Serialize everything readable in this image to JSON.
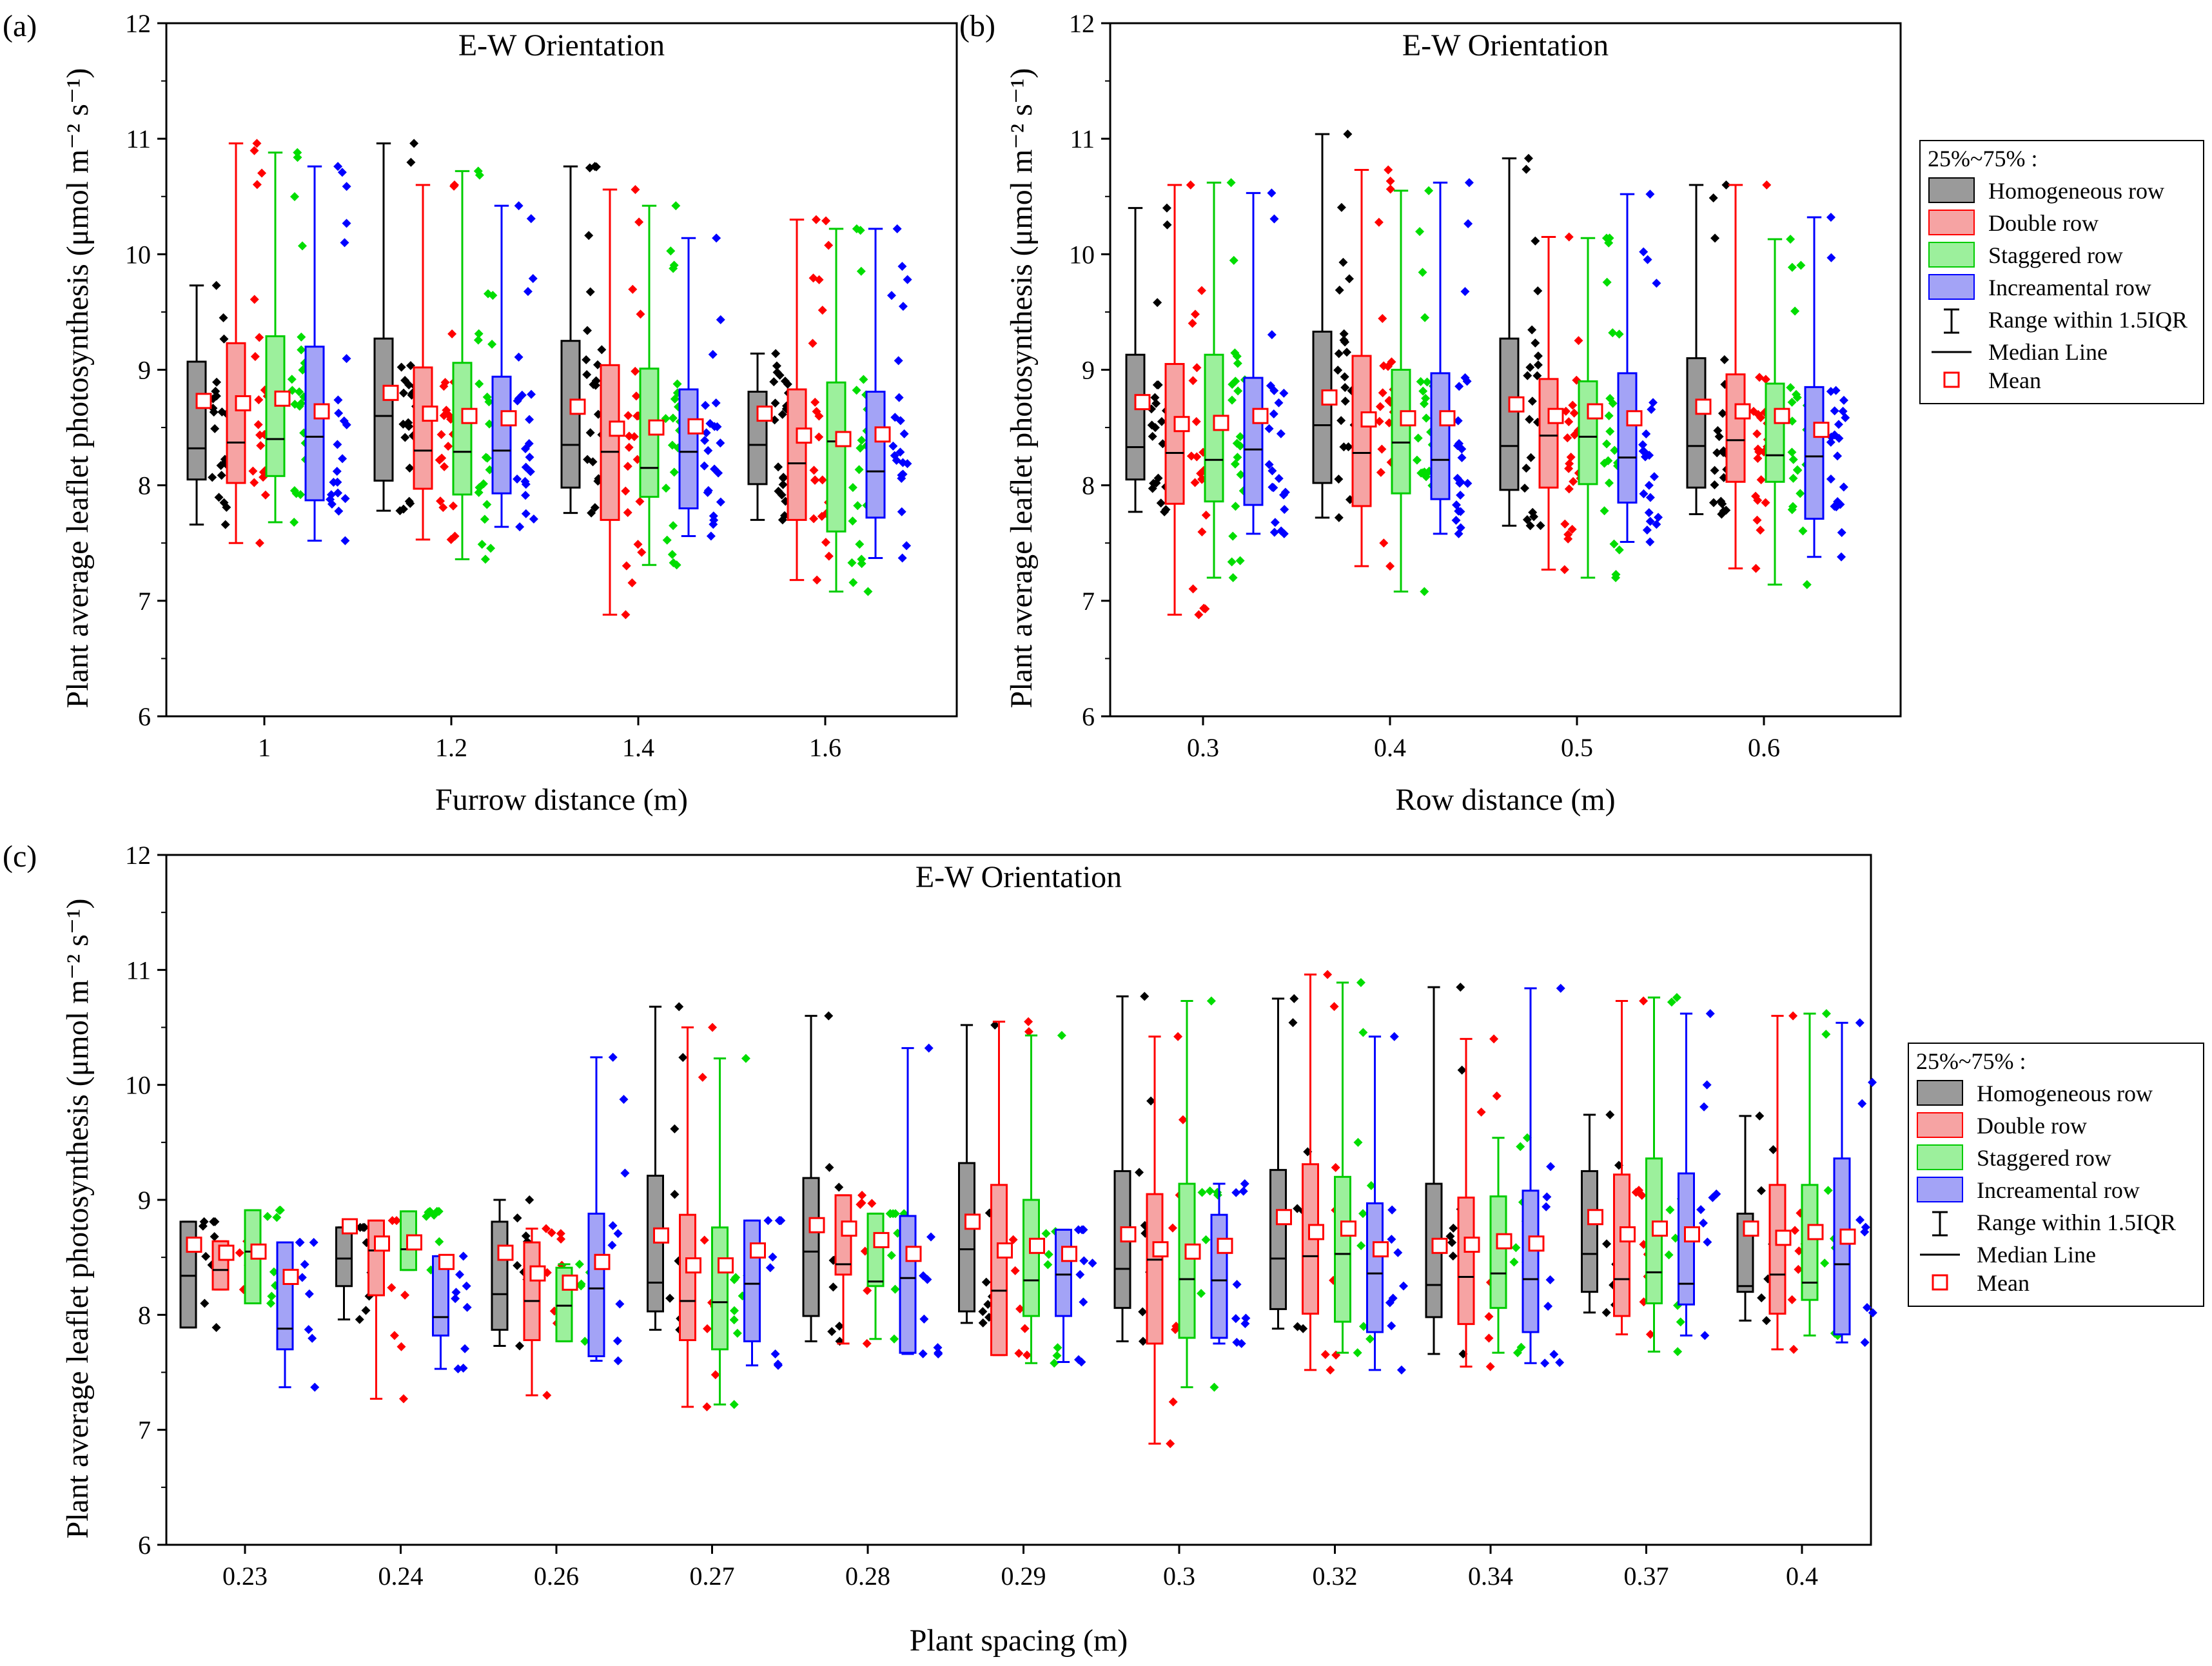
{
  "figure": {
    "series_legend": {
      "heading": "25%~75% :",
      "entries": [
        "Homogeneous row",
        "Double row",
        "Staggered row",
        "Increamental row"
      ],
      "range_label": "Range within 1.5IQR",
      "median_label": "Median Line",
      "mean_label": "Mean"
    },
    "colors": {
      "Homogeneous row": {
        "box": "#9a9a9a",
        "point": "#000000",
        "line": "#000000"
      },
      "Double row": {
        "box": "#f6a3a3",
        "point": "#ff0000",
        "line": "#ff0000"
      },
      "Staggered row": {
        "box": "#9cf09c",
        "point": "#00dd00",
        "line": "#00cc00"
      },
      "Increamental row": {
        "box": "#a3a3f6",
        "point": "#0000ff",
        "line": "#0000ff"
      },
      "mean_marker": "#ff0000"
    }
  },
  "chart_data": [
    {
      "panel": "(a)",
      "type": "box",
      "title": "E-W Orientation",
      "xlabel": "Furrow distance (m)",
      "ylabel": "Plant average leaflet photosynthesis (μmol m⁻² s⁻¹)",
      "ylim": [
        6,
        12
      ],
      "yticks": [
        "6",
        "7",
        "8",
        "9",
        "10",
        "11",
        "12"
      ],
      "categories": [
        "1",
        "1.2",
        "1.4",
        "1.6"
      ],
      "series": [
        {
          "name": "Homogeneous row",
          "stats": [
            {
              "q1": 8.05,
              "median": 8.32,
              "q3": 9.07,
              "whisker_low": 7.66,
              "whisker_high": 9.73,
              "mean": 8.73
            },
            {
              "q1": 8.04,
              "median": 8.6,
              "q3": 9.27,
              "whisker_low": 7.78,
              "whisker_high": 10.96,
              "mean": 8.8
            },
            {
              "q1": 7.98,
              "median": 8.35,
              "q3": 9.25,
              "whisker_low": 7.76,
              "whisker_high": 10.76,
              "mean": 8.68
            },
            {
              "q1": 8.01,
              "median": 8.35,
              "q3": 8.81,
              "whisker_low": 7.7,
              "whisker_high": 9.14,
              "mean": 8.62
            }
          ]
        },
        {
          "name": "Double row",
          "stats": [
            {
              "q1": 8.02,
              "median": 8.37,
              "q3": 9.23,
              "whisker_low": 7.5,
              "whisker_high": 10.96,
              "mean": 8.71
            },
            {
              "q1": 7.97,
              "median": 8.3,
              "q3": 9.02,
              "whisker_low": 7.53,
              "whisker_high": 10.6,
              "mean": 8.62
            },
            {
              "q1": 7.7,
              "median": 8.29,
              "q3": 9.04,
              "whisker_low": 6.88,
              "whisker_high": 10.56,
              "mean": 8.49
            },
            {
              "q1": 7.7,
              "median": 8.19,
              "q3": 8.83,
              "whisker_low": 7.18,
              "whisker_high": 10.3,
              "mean": 8.43
            }
          ]
        },
        {
          "name": "Staggered row",
          "stats": [
            {
              "q1": 8.08,
              "median": 8.4,
              "q3": 9.29,
              "whisker_low": 7.68,
              "whisker_high": 10.88,
              "mean": 8.75
            },
            {
              "q1": 7.92,
              "median": 8.29,
              "q3": 9.06,
              "whisker_low": 7.36,
              "whisker_high": 10.72,
              "mean": 8.6
            },
            {
              "q1": 7.9,
              "median": 8.15,
              "q3": 9.01,
              "whisker_low": 7.31,
              "whisker_high": 10.42,
              "mean": 8.5
            },
            {
              "q1": 7.6,
              "median": 8.38,
              "q3": 8.89,
              "whisker_low": 7.08,
              "whisker_high": 10.22,
              "mean": 8.4
            }
          ]
        },
        {
          "name": "Increamental row",
          "stats": [
            {
              "q1": 7.87,
              "median": 8.42,
              "q3": 9.2,
              "whisker_low": 7.52,
              "whisker_high": 10.76,
              "mean": 8.64
            },
            {
              "q1": 7.93,
              "median": 8.3,
              "q3": 8.94,
              "whisker_low": 7.64,
              "whisker_high": 10.42,
              "mean": 8.58
            },
            {
              "q1": 7.8,
              "median": 8.29,
              "q3": 8.83,
              "whisker_low": 7.56,
              "whisker_high": 10.14,
              "mean": 8.51
            },
            {
              "q1": 7.72,
              "median": 8.12,
              "q3": 8.81,
              "whisker_low": 7.37,
              "whisker_high": 10.22,
              "mean": 8.44
            }
          ]
        }
      ]
    },
    {
      "panel": "(b)",
      "type": "box",
      "title": "E-W Orientation",
      "xlabel": "Row distance (m)",
      "ylabel": "Plant average leaflet photosynthesis (μmol m⁻² s⁻¹)",
      "ylim": [
        6,
        12
      ],
      "yticks": [
        "6",
        "7",
        "8",
        "9",
        "10",
        "11",
        "12"
      ],
      "categories": [
        "0.3",
        "0.4",
        "0.5",
        "0.6"
      ],
      "series": [
        {
          "name": "Homogeneous row",
          "stats": [
            {
              "q1": 8.05,
              "median": 8.33,
              "q3": 9.13,
              "whisker_low": 7.77,
              "whisker_high": 10.4,
              "mean": 8.72
            },
            {
              "q1": 8.02,
              "median": 8.52,
              "q3": 9.33,
              "whisker_low": 7.72,
              "whisker_high": 11.04,
              "mean": 8.76
            },
            {
              "q1": 7.96,
              "median": 8.34,
              "q3": 9.27,
              "whisker_low": 7.65,
              "whisker_high": 10.83,
              "mean": 8.7
            },
            {
              "q1": 7.98,
              "median": 8.34,
              "q3": 9.1,
              "whisker_low": 7.75,
              "whisker_high": 10.6,
              "mean": 8.68
            }
          ]
        },
        {
          "name": "Double row",
          "stats": [
            {
              "q1": 7.84,
              "median": 8.28,
              "q3": 9.05,
              "whisker_low": 6.88,
              "whisker_high": 10.6,
              "mean": 8.53
            },
            {
              "q1": 7.82,
              "median": 8.28,
              "q3": 9.12,
              "whisker_low": 7.3,
              "whisker_high": 10.73,
              "mean": 8.57
            },
            {
              "q1": 7.98,
              "median": 8.43,
              "q3": 8.92,
              "whisker_low": 7.27,
              "whisker_high": 10.15,
              "mean": 8.6
            },
            {
              "q1": 8.03,
              "median": 8.39,
              "q3": 8.96,
              "whisker_low": 7.28,
              "whisker_high": 10.6,
              "mean": 8.64
            }
          ]
        },
        {
          "name": "Staggered row",
          "stats": [
            {
              "q1": 7.86,
              "median": 8.22,
              "q3": 9.13,
              "whisker_low": 7.2,
              "whisker_high": 10.62,
              "mean": 8.54
            },
            {
              "q1": 7.93,
              "median": 8.37,
              "q3": 9.0,
              "whisker_low": 7.08,
              "whisker_high": 10.55,
              "mean": 8.58
            },
            {
              "q1": 8.01,
              "median": 8.42,
              "q3": 8.9,
              "whisker_low": 7.2,
              "whisker_high": 10.14,
              "mean": 8.64
            },
            {
              "q1": 8.03,
              "median": 8.26,
              "q3": 8.88,
              "whisker_low": 7.14,
              "whisker_high": 10.13,
              "mean": 8.6
            }
          ]
        },
        {
          "name": "Increamental row",
          "stats": [
            {
              "q1": 7.83,
              "median": 8.31,
              "q3": 8.93,
              "whisker_low": 7.58,
              "whisker_high": 10.53,
              "mean": 8.6
            },
            {
              "q1": 7.88,
              "median": 8.22,
              "q3": 8.97,
              "whisker_low": 7.58,
              "whisker_high": 10.62,
              "mean": 8.58
            },
            {
              "q1": 7.85,
              "median": 8.24,
              "q3": 8.97,
              "whisker_low": 7.51,
              "whisker_high": 10.52,
              "mean": 8.58
            },
            {
              "q1": 7.71,
              "median": 8.25,
              "q3": 8.85,
              "whisker_low": 7.38,
              "whisker_high": 10.32,
              "mean": 8.48
            }
          ]
        }
      ]
    },
    {
      "panel": "(c)",
      "type": "box",
      "title": "E-W Orientation",
      "xlabel": "Plant spacing (m)",
      "ylabel": "Plant average leaflet photosynthesis (μmol m⁻² s⁻¹)",
      "ylim": [
        6,
        12
      ],
      "yticks": [
        "6",
        "7",
        "8",
        "9",
        "10",
        "11",
        "12"
      ],
      "categories": [
        "0.23",
        "0.24",
        "0.26",
        "0.27",
        "0.28",
        "0.29",
        "0.3",
        "0.32",
        "0.34",
        "0.37",
        "0.4"
      ],
      "series": [
        {
          "name": "Homogeneous row",
          "stats": [
            {
              "q1": 7.89,
              "median": 8.34,
              "q3": 8.81,
              "whisker_low": 7.89,
              "whisker_high": 8.81,
              "mean": 8.61
            },
            {
              "q1": 8.25,
              "median": 8.49,
              "q3": 8.76,
              "whisker_low": 7.96,
              "whisker_high": 8.76,
              "mean": 8.77
            },
            {
              "q1": 7.87,
              "median": 8.18,
              "q3": 8.81,
              "whisker_low": 7.73,
              "whisker_high": 9.0,
              "mean": 8.54
            },
            {
              "q1": 8.03,
              "median": 8.28,
              "q3": 9.21,
              "whisker_low": 7.87,
              "whisker_high": 10.68,
              "mean": 8.69
            },
            {
              "q1": 7.99,
              "median": 8.55,
              "q3": 9.19,
              "whisker_low": 7.77,
              "whisker_high": 10.6,
              "mean": 8.78
            },
            {
              "q1": 8.03,
              "median": 8.57,
              "q3": 9.32,
              "whisker_low": 7.93,
              "whisker_high": 10.52,
              "mean": 8.81
            },
            {
              "q1": 8.06,
              "median": 8.4,
              "q3": 9.25,
              "whisker_low": 7.77,
              "whisker_high": 10.77,
              "mean": 8.7
            },
            {
              "q1": 8.05,
              "median": 8.49,
              "q3": 9.26,
              "whisker_low": 7.88,
              "whisker_high": 10.75,
              "mean": 8.85
            },
            {
              "q1": 7.98,
              "median": 8.26,
              "q3": 9.14,
              "whisker_low": 7.66,
              "whisker_high": 10.85,
              "mean": 8.6
            },
            {
              "q1": 8.2,
              "median": 8.53,
              "q3": 9.25,
              "whisker_low": 8.02,
              "whisker_high": 9.74,
              "mean": 8.85
            },
            {
              "q1": 8.2,
              "median": 8.25,
              "q3": 8.88,
              "whisker_low": 7.95,
              "whisker_high": 9.73,
              "mean": 8.75
            }
          ]
        },
        {
          "name": "Double row",
          "stats": [
            {
              "q1": 8.22,
              "median": 8.39,
              "q3": 8.64,
              "whisker_low": 8.22,
              "whisker_high": 8.64,
              "mean": 8.54
            },
            {
              "q1": 8.17,
              "median": 8.56,
              "q3": 8.82,
              "whisker_low": 7.27,
              "whisker_high": 8.82,
              "mean": 8.62
            },
            {
              "q1": 7.78,
              "median": 8.12,
              "q3": 8.63,
              "whisker_low": 7.3,
              "whisker_high": 8.75,
              "mean": 8.36
            },
            {
              "q1": 7.78,
              "median": 8.12,
              "q3": 8.87,
              "whisker_low": 7.2,
              "whisker_high": 10.5,
              "mean": 8.43
            },
            {
              "q1": 8.35,
              "median": 8.44,
              "q3": 9.04,
              "whisker_low": 7.75,
              "whisker_high": 9.04,
              "mean": 8.75
            },
            {
              "q1": 7.65,
              "median": 8.21,
              "q3": 9.13,
              "whisker_low": 7.65,
              "whisker_high": 10.55,
              "mean": 8.56
            },
            {
              "q1": 7.75,
              "median": 8.48,
              "q3": 9.05,
              "whisker_low": 6.88,
              "whisker_high": 10.42,
              "mean": 8.57
            },
            {
              "q1": 8.01,
              "median": 8.51,
              "q3": 9.31,
              "whisker_low": 7.52,
              "whisker_high": 10.96,
              "mean": 8.72
            },
            {
              "q1": 7.92,
              "median": 8.33,
              "q3": 9.02,
              "whisker_low": 7.55,
              "whisker_high": 10.4,
              "mean": 8.61
            },
            {
              "q1": 7.99,
              "median": 8.31,
              "q3": 9.22,
              "whisker_low": 7.83,
              "whisker_high": 10.73,
              "mean": 8.7
            },
            {
              "q1": 8.01,
              "median": 8.35,
              "q3": 9.13,
              "whisker_low": 7.7,
              "whisker_high": 10.6,
              "mean": 8.67
            }
          ]
        },
        {
          "name": "Staggered row",
          "stats": [
            {
              "q1": 8.1,
              "median": 8.55,
              "q3": 8.91,
              "whisker_low": 8.1,
              "whisker_high": 8.91,
              "mean": 8.55
            },
            {
              "q1": 8.39,
              "median": 8.57,
              "q3": 8.9,
              "whisker_low": 8.39,
              "whisker_high": 8.9,
              "mean": 8.63
            },
            {
              "q1": 7.77,
              "median": 8.08,
              "q3": 8.41,
              "whisker_low": 7.77,
              "whisker_high": 8.44,
              "mean": 8.28
            },
            {
              "q1": 7.7,
              "median": 8.11,
              "q3": 8.76,
              "whisker_low": 7.22,
              "whisker_high": 10.23,
              "mean": 8.43
            },
            {
              "q1": 8.25,
              "median": 8.29,
              "q3": 8.88,
              "whisker_low": 7.79,
              "whisker_high": 8.88,
              "mean": 8.65
            },
            {
              "q1": 7.99,
              "median": 8.3,
              "q3": 9.0,
              "whisker_low": 7.58,
              "whisker_high": 10.43,
              "mean": 8.6
            },
            {
              "q1": 7.8,
              "median": 8.31,
              "q3": 9.14,
              "whisker_low": 7.37,
              "whisker_high": 10.73,
              "mean": 8.55
            },
            {
              "q1": 7.94,
              "median": 8.53,
              "q3": 9.2,
              "whisker_low": 7.67,
              "whisker_high": 10.89,
              "mean": 8.75
            },
            {
              "q1": 8.06,
              "median": 8.36,
              "q3": 9.03,
              "whisker_low": 7.67,
              "whisker_high": 9.54,
              "mean": 8.64
            },
            {
              "q1": 8.1,
              "median": 8.37,
              "q3": 9.36,
              "whisker_low": 7.68,
              "whisker_high": 10.76,
              "mean": 8.75
            },
            {
              "q1": 8.13,
              "median": 8.28,
              "q3": 9.13,
              "whisker_low": 7.82,
              "whisker_high": 10.62,
              "mean": 8.72
            }
          ]
        },
        {
          "name": "Increamental row",
          "stats": [
            {
              "q1": 7.7,
              "median": 7.88,
              "q3": 8.63,
              "whisker_low": 7.37,
              "whisker_high": 8.63,
              "mean": 8.33
            },
            {
              "q1": 7.82,
              "median": 7.98,
              "q3": 8.51,
              "whisker_low": 7.53,
              "whisker_high": 8.51,
              "mean": 8.46
            },
            {
              "q1": 7.64,
              "median": 8.23,
              "q3": 8.88,
              "whisker_low": 7.6,
              "whisker_high": 10.24,
              "mean": 8.46
            },
            {
              "q1": 7.77,
              "median": 8.27,
              "q3": 8.82,
              "whisker_low": 7.56,
              "whisker_high": 8.82,
              "mean": 8.56
            },
            {
              "q1": 7.67,
              "median": 8.32,
              "q3": 8.86,
              "whisker_low": 7.66,
              "whisker_high": 10.32,
              "mean": 8.53
            },
            {
              "q1": 7.99,
              "median": 8.35,
              "q3": 8.74,
              "whisker_low": 7.59,
              "whisker_high": 8.74,
              "mean": 8.53
            },
            {
              "q1": 7.8,
              "median": 8.3,
              "q3": 8.87,
              "whisker_low": 7.75,
              "whisker_high": 9.14,
              "mean": 8.6
            },
            {
              "q1": 7.85,
              "median": 8.36,
              "q3": 8.97,
              "whisker_low": 7.52,
              "whisker_high": 10.42,
              "mean": 8.57
            },
            {
              "q1": 7.85,
              "median": 8.31,
              "q3": 9.08,
              "whisker_low": 7.58,
              "whisker_high": 10.84,
              "mean": 8.62
            },
            {
              "q1": 8.09,
              "median": 8.27,
              "q3": 9.23,
              "whisker_low": 7.82,
              "whisker_high": 10.62,
              "mean": 8.7
            },
            {
              "q1": 7.83,
              "median": 8.44,
              "q3": 9.36,
              "whisker_low": 7.76,
              "whisker_high": 10.54,
              "mean": 8.68
            }
          ]
        }
      ]
    }
  ]
}
